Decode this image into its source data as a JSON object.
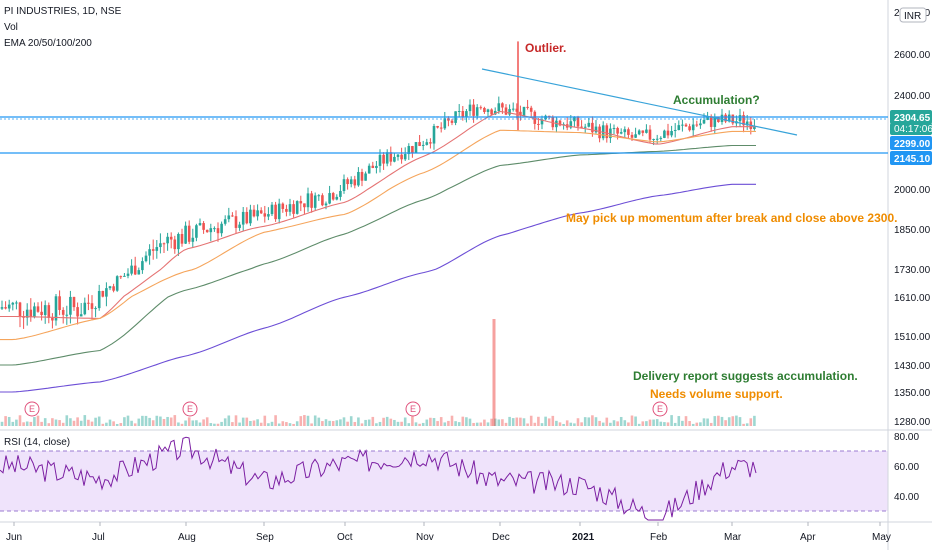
{
  "header": {
    "symbol": "PI INDUSTRIES, 1D, NSE",
    "vol_label": "Vol",
    "ema_label": "EMA 20/50/100/200",
    "currency": "INR",
    "rsi_label": "RSI (14, close)"
  },
  "colors": {
    "up": "#26a69a",
    "down": "#ef5350",
    "ema20": "#e57373",
    "ema50": "#f5a55c",
    "ema100": "#5e8c6a",
    "ema200": "#6c4ed6",
    "hline": "#2196f3",
    "trend": "#38a3d9",
    "rsi": "#7b1fa2",
    "rsi_band": "#efe3fb",
    "annot_red": "#c62828",
    "annot_green": "#2e7d32",
    "annot_orange": "#ef8c00"
  },
  "annotations": {
    "outlier": "Outlier.",
    "accumulation": "Accumulation?",
    "momentum": "May pick up momentum after break and close above 2300.",
    "delivery": "Delivery report suggests accumulation.",
    "volume": "Needs volume support.",
    "earnings_marker": "E"
  },
  "price_tags": {
    "last_price": "2304.65",
    "countdown": "04:17:06",
    "level1": "2299.00",
    "level2": "2145.10"
  },
  "chart_data": {
    "type": "line",
    "title": "PI INDUSTRIES, 1D, NSE",
    "x": [
      "Jun",
      "Jul",
      "Aug",
      "Sep",
      "Oct",
      "Nov",
      "Dec",
      "2021",
      "Feb",
      "Mar",
      "Apr",
      "May"
    ],
    "price_axis_ticks": [
      "2800.00",
      "2600.00",
      "2400.00",
      "2000.00",
      "1850.00",
      "1730.00",
      "1610.00",
      "1510.00",
      "1430.00",
      "1350.00",
      "1280.00"
    ],
    "rsi_axis_ticks": [
      "80.00",
      "60.00",
      "40.00"
    ],
    "horizontal_levels": [
      2299.0,
      2145.1
    ],
    "ema_series": [
      {
        "name": "EMA 20",
        "x": [
          "Jun",
          "Jul",
          "Aug",
          "Sep",
          "Oct",
          "Nov",
          "Dec",
          "2021",
          "Feb",
          "Mar"
        ],
        "values": [
          1560,
          1555,
          1790,
          1860,
          1950,
          2140,
          2330,
          2260,
          2190,
          2265
        ]
      },
      {
        "name": "EMA 50",
        "x": [
          "Jun",
          "Jul",
          "Aug",
          "Sep",
          "Oct",
          "Nov",
          "Dec",
          "2021",
          "Feb",
          "Mar"
        ],
        "values": [
          1500,
          1555,
          1720,
          1840,
          1905,
          2070,
          2250,
          2240,
          2200,
          2245
        ]
      },
      {
        "name": "EMA 100",
        "x": [
          "Jun",
          "Jul",
          "Aug",
          "Sep",
          "Oct",
          "Nov",
          "Dec",
          "2021",
          "Feb",
          "Mar"
        ],
        "values": [
          1430,
          1470,
          1640,
          1745,
          1835,
          1960,
          2100,
          2145,
          2160,
          2185
        ]
      },
      {
        "name": "EMA 200",
        "x": [
          "Jun",
          "Jul",
          "Aug",
          "Sep",
          "Oct",
          "Nov",
          "Dec",
          "2021",
          "Feb",
          "Mar"
        ],
        "values": [
          1350,
          1380,
          1455,
          1530,
          1610,
          1715,
          1830,
          1910,
          1975,
          2020
        ]
      }
    ],
    "rsi_series": {
      "name": "RSI (14, close)",
      "x": [
        "Jun",
        "Jul",
        "Aug",
        "Sep",
        "Oct",
        "Nov",
        "Dec",
        "2021",
        "Feb",
        "Mar"
      ],
      "values": [
        60,
        52,
        72,
        50,
        62,
        68,
        50,
        48,
        26,
        60
      ]
    },
    "rsi_bands": [
      70,
      30
    ],
    "trendline": {
      "x": [
        "Nov",
        "Apr"
      ],
      "values": [
        2520,
        2260
      ]
    },
    "outlier_high": 2660,
    "volume_spike_month": "Dec",
    "earnings_months": [
      "Jun",
      "Aug",
      "Nov",
      "Feb"
    ]
  }
}
